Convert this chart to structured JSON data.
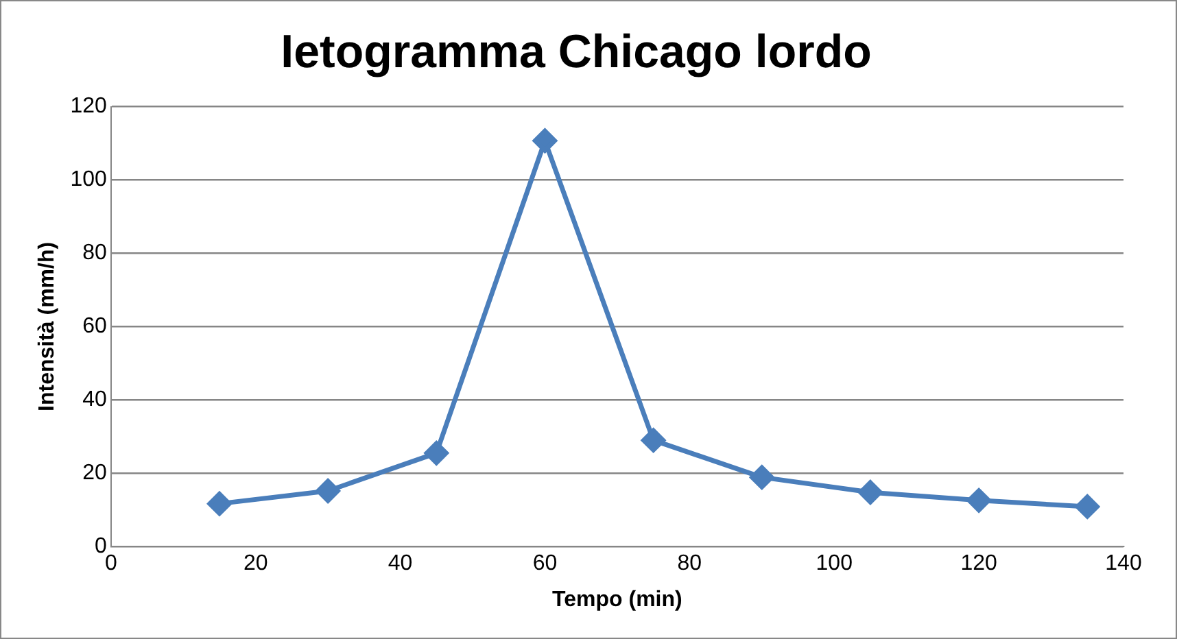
{
  "chart_data": {
    "type": "line",
    "title": "Ietogramma Chicago lordo",
    "xlabel": "Tempo (min)",
    "ylabel": "Intensità (mm/h)",
    "x": [
      15,
      30,
      45,
      60,
      75,
      90,
      105,
      120,
      135
    ],
    "series": [
      {
        "color": "#4a7ebb",
        "values": [
          11.7,
          15.2,
          25.5,
          110.7,
          29.0,
          18.9,
          14.8,
          12.6,
          10.9
        ]
      }
    ],
    "xlim": [
      0,
      140
    ],
    "xticks": [
      0,
      20,
      40,
      60,
      80,
      100,
      120,
      140
    ],
    "ylim": [
      0,
      120
    ],
    "yticks": [
      0,
      20,
      40,
      60,
      80,
      100,
      120
    ],
    "grid": "y",
    "legend": false,
    "marker": "diamond",
    "line_style": "solid"
  }
}
